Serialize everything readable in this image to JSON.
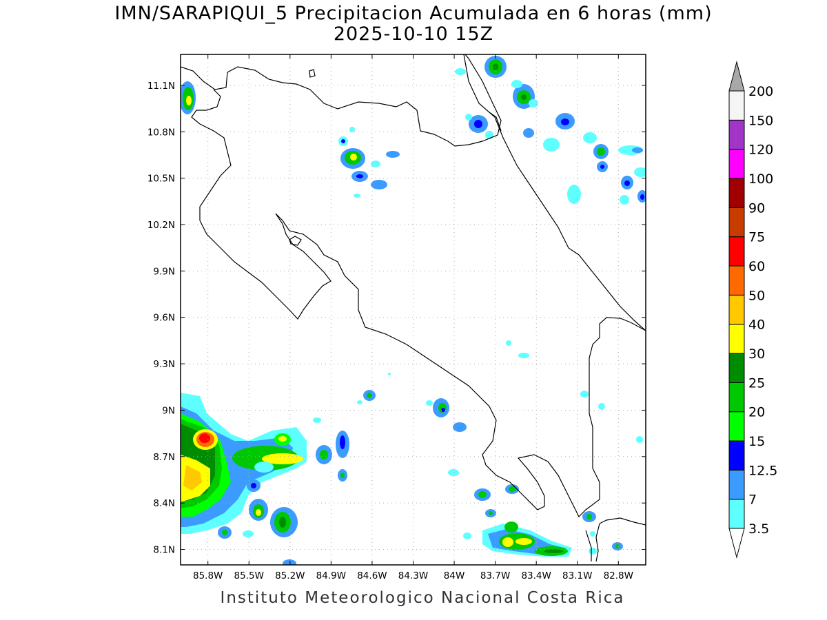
{
  "title": {
    "line1": "IMN/SARAPIQUI_5 Precipitacion Acumulada en 6 horas (mm)",
    "line2": "2025-10-10 15Z"
  },
  "footer": "Instituto Meteorologico Nacional Costa Rica",
  "axes": {
    "lat_ticks": [
      "11.1N",
      "10.8N",
      "10.5N",
      "10.2N",
      "9.9N",
      "9.6N",
      "9.3N",
      "9N",
      "8.7N",
      "8.4N",
      "8.1N"
    ],
    "lon_ticks": [
      "85.8W",
      "85.5W",
      "85.2W",
      "84.9W",
      "84.6W",
      "84.3W",
      "84W",
      "83.7W",
      "83.4W",
      "83.1W",
      "82.8W"
    ],
    "lat_values": [
      11.1,
      10.8,
      10.5,
      10.2,
      9.9,
      9.6,
      9.3,
      9.0,
      8.7,
      8.4,
      8.1
    ],
    "lon_values": [
      -85.8,
      -85.5,
      -85.2,
      -84.9,
      -84.6,
      -84.3,
      -84.0,
      -83.7,
      -83.4,
      -83.1,
      -82.8
    ],
    "lat_range": [
      8.0,
      11.3
    ],
    "lon_range": [
      -86.0,
      -82.6
    ],
    "grid": "dotted"
  },
  "colorbar": {
    "labels": [
      "3.5",
      "7",
      "12.5",
      "15",
      "20",
      "25",
      "30",
      "40",
      "50",
      "60",
      "75",
      "90",
      "100",
      "120",
      "150",
      "200"
    ],
    "colors": [
      "#5dffff",
      "#3b9bff",
      "#0000ff",
      "#00ff00",
      "#00c800",
      "#008c00",
      "#ffff00",
      "#ffc800",
      "#ff6a00",
      "#ff0000",
      "#c83c00",
      "#a00000",
      "#ff00ff",
      "#a035c8",
      "#f5f5f5"
    ],
    "under_color": "#ffffff",
    "over_color": "#a8a8a8"
  },
  "colors": {
    "coastline": "#000000",
    "grid": "#aaaaaa",
    "frame": "#000000"
  }
}
